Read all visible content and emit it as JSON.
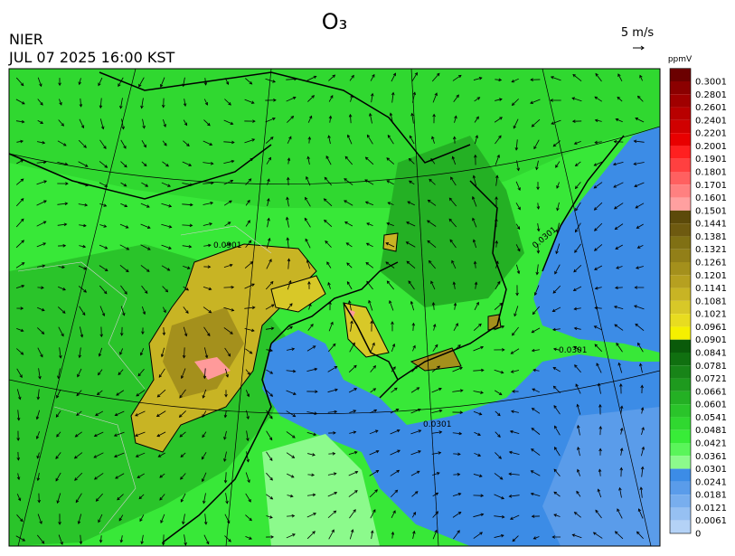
{
  "header": {
    "title": "O₃",
    "agency": "NIER",
    "datetime": "JUL 07 2025 16:00 KST",
    "wind_scale": "5 m/s"
  },
  "colorbar": {
    "unit": "ppmV",
    "levels": [
      0.3001,
      0.2801,
      0.2601,
      0.2401,
      0.2201,
      0.2001,
      0.1901,
      0.1801,
      0.1701,
      0.1601,
      0.1501,
      0.1441,
      0.1381,
      0.1321,
      0.1261,
      0.1201,
      0.1141,
      0.1081,
      0.1021,
      0.0961,
      0.0901,
      0.0841,
      0.0781,
      0.0721,
      0.0661,
      0.0601,
      0.0541,
      0.0481,
      0.0421,
      0.0361,
      0.0301,
      0.0241,
      0.0181,
      0.0121,
      0.0061,
      0
    ],
    "colors": [
      "#6b0000",
      "#8b0000",
      "#a00000",
      "#b80000",
      "#d00000",
      "#e80000",
      "#ff2020",
      "#ff4040",
      "#ff6060",
      "#ff8080",
      "#ffa0a0",
      "#5c4a0a",
      "#6e5a10",
      "#807014",
      "#927f18",
      "#a4901c",
      "#b6a020",
      "#c8b424",
      "#d8c828",
      "#e8dc20",
      "#f5f000",
      "#0a5a0a",
      "#107010",
      "#188418",
      "#1e9a1e",
      "#24b024",
      "#2ac42a",
      "#30d830",
      "#38ec38",
      "#5af55a",
      "#8cfa8c",
      "#3c8ce6",
      "#5a9cea",
      "#78aeee",
      "#96c0f2",
      "#b4d2f6"
    ]
  },
  "map": {
    "contour_labels": [
      "0.0901",
      "0.0301"
    ]
  }
}
